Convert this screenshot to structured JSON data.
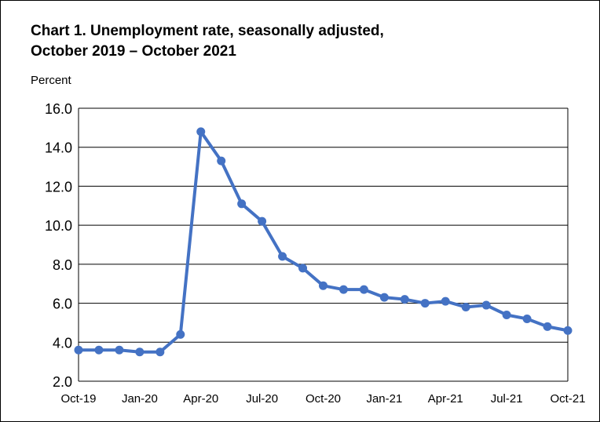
{
  "chart_data": {
    "type": "line",
    "title_line1": "Chart 1. Unemployment rate, seasonally adjusted,",
    "title_line2": "October 2019 – October 2021",
    "ylabel": "Percent",
    "xlabel": "",
    "ylim": [
      2.0,
      16.0
    ],
    "y_ticks": [
      "2.0",
      "4.0",
      "6.0",
      "8.0",
      "10.0",
      "12.0",
      "14.0",
      "16.0"
    ],
    "x_tick_labels": [
      "Oct-19",
      "Jan-20",
      "Apr-20",
      "Jul-20",
      "Oct-20",
      "Jan-21",
      "Apr-21",
      "Jul-21",
      "Oct-21"
    ],
    "x": [
      "Oct-19",
      "Nov-19",
      "Dec-19",
      "Jan-20",
      "Feb-20",
      "Mar-20",
      "Apr-20",
      "May-20",
      "Jun-20",
      "Jul-20",
      "Aug-20",
      "Sep-20",
      "Oct-20",
      "Nov-20",
      "Dec-20",
      "Jan-21",
      "Feb-21",
      "Mar-21",
      "Apr-21",
      "May-21",
      "Jun-21",
      "Jul-21",
      "Aug-21",
      "Sep-21",
      "Oct-21"
    ],
    "series": [
      {
        "values": [
          3.6,
          3.6,
          3.6,
          3.5,
          3.5,
          4.4,
          14.8,
          13.3,
          11.1,
          10.2,
          8.4,
          7.8,
          6.9,
          6.7,
          6.7,
          6.3,
          6.2,
          6.0,
          6.1,
          5.8,
          5.9,
          5.4,
          5.2,
          4.8,
          4.6
        ]
      }
    ],
    "grid": "horizontal",
    "line_color": "#4472C4",
    "marker_color": "#4472C4"
  }
}
